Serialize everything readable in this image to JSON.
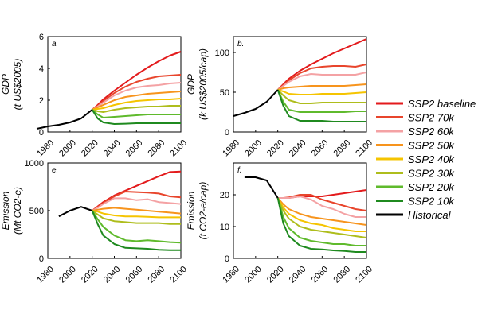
{
  "chart_data": [
    {
      "panel": "a.",
      "type": "line",
      "ylabel": [
        "GDP",
        "(t US$2005)"
      ],
      "xlim": [
        1980,
        2100
      ],
      "ylim": [
        0,
        6
      ],
      "xticks": [
        "1980",
        "2000",
        "2020",
        "2040",
        "2060",
        "2080",
        "2100"
      ],
      "yticks": [
        "0",
        "2",
        "4",
        "6"
      ],
      "historical": {
        "x": [
          1970,
          1980,
          1990,
          2000,
          2010,
          2020
        ],
        "y": [
          0.2,
          0.35,
          0.45,
          0.6,
          0.85,
          1.4
        ]
      },
      "x": [
        2020,
        2025,
        2030,
        2040,
        2050,
        2060,
        2070,
        2080,
        2090,
        2100
      ],
      "series": [
        {
          "name": "SSP2 baseline",
          "values": [
            1.4,
            1.7,
            2.05,
            2.6,
            3.1,
            3.6,
            4.05,
            4.45,
            4.8,
            5.05
          ]
        },
        {
          "name": "SSP2 70k",
          "values": [
            1.4,
            1.65,
            1.95,
            2.45,
            2.85,
            3.15,
            3.35,
            3.5,
            3.55,
            3.6
          ]
        },
        {
          "name": "SSP2 60k",
          "values": [
            1.4,
            1.6,
            1.85,
            2.3,
            2.6,
            2.8,
            2.9,
            2.95,
            3.05,
            3.1
          ]
        },
        {
          "name": "SSP2 50k",
          "values": [
            1.4,
            1.55,
            1.7,
            2.0,
            2.2,
            2.3,
            2.4,
            2.45,
            2.5,
            2.55
          ]
        },
        {
          "name": "SSP2 40k",
          "values": [
            1.4,
            1.45,
            1.5,
            1.7,
            1.85,
            1.95,
            2.0,
            2.05,
            2.05,
            2.1
          ]
        },
        {
          "name": "SSP2 30k",
          "values": [
            1.4,
            1.3,
            1.25,
            1.4,
            1.5,
            1.55,
            1.6,
            1.6,
            1.65,
            1.65
          ]
        },
        {
          "name": "SSP2 20k",
          "values": [
            1.4,
            1.1,
            0.9,
            0.95,
            1.0,
            1.05,
            1.1,
            1.1,
            1.1,
            1.1
          ]
        },
        {
          "name": "SSP2 10k",
          "values": [
            1.4,
            0.85,
            0.6,
            0.5,
            0.52,
            0.55,
            0.55,
            0.55,
            0.55,
            0.55
          ]
        }
      ]
    },
    {
      "panel": "b.",
      "type": "line",
      "ylabel": [
        "GDP",
        "(k US$2005/cap)"
      ],
      "xlim": [
        1980,
        2100
      ],
      "ylim": [
        0,
        120
      ],
      "xticks": [
        "1980",
        "2000",
        "2020",
        "2040",
        "2060",
        "2080",
        "2100"
      ],
      "yticks": [
        "0",
        "50",
        "100"
      ],
      "historical": {
        "x": [
          1980,
          1990,
          2000,
          2010,
          2020
        ],
        "y": [
          20,
          24,
          29,
          38,
          53
        ]
      },
      "x": [
        2020,
        2025,
        2030,
        2040,
        2050,
        2060,
        2070,
        2080,
        2090,
        2100
      ],
      "series": [
        {
          "name": "SSP2 baseline",
          "values": [
            53,
            60,
            67,
            77,
            85,
            92,
            99,
            105,
            111,
            117
          ]
        },
        {
          "name": "SSP2 70k",
          "values": [
            53,
            59,
            65,
            74,
            80,
            82,
            83,
            83,
            82,
            85
          ]
        },
        {
          "name": "SSP2 60k",
          "values": [
            53,
            58,
            63,
            70,
            73,
            72,
            72,
            72,
            72,
            75
          ]
        },
        {
          "name": "SSP2 50k",
          "values": [
            53,
            55,
            56,
            57,
            58,
            58,
            58,
            58,
            59,
            60
          ]
        },
        {
          "name": "SSP2 40k",
          "values": [
            53,
            51,
            48,
            47,
            47,
            48,
            48,
            48,
            49,
            50
          ]
        },
        {
          "name": "SSP2 30k",
          "values": [
            53,
            46,
            40,
            36,
            36,
            37,
            37,
            37,
            37,
            37
          ]
        },
        {
          "name": "SSP2 20k",
          "values": [
            53,
            38,
            28,
            25,
            25,
            25,
            25,
            25,
            26,
            26
          ]
        },
        {
          "name": "SSP2 10k",
          "values": [
            53,
            33,
            20,
            14,
            14,
            14,
            13,
            13,
            13,
            13
          ]
        }
      ]
    },
    {
      "panel": "e.",
      "type": "line",
      "ylabel": [
        "Emission",
        "(Mt CO2-e)"
      ],
      "xlim": [
        1980,
        2100
      ],
      "ylim": [
        0,
        1000
      ],
      "xticks": [
        "1980",
        "2000",
        "2020",
        "2040",
        "2060",
        "2080",
        "2100"
      ],
      "yticks": [
        "0",
        "500",
        "1000"
      ],
      "historical": {
        "x": [
          1990,
          2000,
          2010,
          2020
        ],
        "y": [
          440,
          500,
          540,
          500
        ]
      },
      "x": [
        2020,
        2025,
        2030,
        2040,
        2050,
        2060,
        2070,
        2080,
        2090,
        2100
      ],
      "series": [
        {
          "name": "SSP2 baseline",
          "values": [
            500,
            545,
            590,
            660,
            710,
            760,
            810,
            860,
            905,
            910
          ]
        },
        {
          "name": "SSP2 70k",
          "values": [
            500,
            540,
            580,
            650,
            700,
            695,
            690,
            680,
            650,
            640
          ]
        },
        {
          "name": "SSP2 60k",
          "values": [
            500,
            530,
            570,
            630,
            630,
            610,
            620,
            590,
            580,
            570
          ]
        },
        {
          "name": "SSP2 50k",
          "values": [
            500,
            510,
            520,
            530,
            520,
            510,
            500,
            490,
            480,
            470
          ]
        },
        {
          "name": "SSP2 40k",
          "values": [
            500,
            490,
            470,
            450,
            440,
            440,
            435,
            430,
            430,
            430
          ]
        },
        {
          "name": "SSP2 30k",
          "values": [
            500,
            460,
            420,
            390,
            380,
            370,
            370,
            370,
            360,
            360
          ]
        },
        {
          "name": "SSP2 20k",
          "values": [
            500,
            410,
            330,
            240,
            190,
            180,
            190,
            180,
            170,
            165
          ]
        },
        {
          "name": "SSP2 10k",
          "values": [
            500,
            360,
            240,
            150,
            110,
            105,
            100,
            90,
            85,
            85
          ]
        }
      ]
    },
    {
      "panel": "f.",
      "type": "line",
      "ylabel": [
        "Emission",
        "(t CO2-e/cap)"
      ],
      "xlim": [
        1980,
        2100
      ],
      "ylim": [
        0,
        30
      ],
      "xticks": [
        "1980",
        "2000",
        "2020",
        "2040",
        "2060",
        "2080",
        "2100"
      ],
      "yticks": [
        "0",
        "10",
        "20"
      ],
      "historical": {
        "x": [
          1990,
          2000,
          2010,
          2020
        ],
        "y": [
          25.5,
          25.5,
          24.5,
          19
        ]
      },
      "x": [
        2020,
        2025,
        2030,
        2040,
        2050,
        2060,
        2070,
        2080,
        2090,
        2100
      ],
      "series": [
        {
          "name": "SSP2 baseline",
          "values": [
            19,
            19,
            19,
            19.5,
            19.5,
            19.5,
            20,
            20.5,
            21,
            21.5
          ]
        },
        {
          "name": "SSP2 70k",
          "values": [
            19,
            19,
            19.2,
            20,
            20,
            18.5,
            17.5,
            16.5,
            15.5,
            15
          ]
        },
        {
          "name": "SSP2 60k",
          "values": [
            19,
            19,
            19,
            19.5,
            18.5,
            16.5,
            15.5,
            14,
            13,
            13
          ]
        },
        {
          "name": "SSP2 50k",
          "values": [
            19,
            17,
            15.5,
            14,
            13,
            12.5,
            12,
            11.5,
            11,
            10.5
          ]
        },
        {
          "name": "SSP2 40k",
          "values": [
            19,
            16,
            14,
            12,
            11,
            10.5,
            9.5,
            9,
            8.5,
            8.5
          ]
        },
        {
          "name": "SSP2 30k",
          "values": [
            19,
            15,
            12.5,
            10,
            9,
            8.5,
            8,
            7.5,
            7,
            6.5
          ]
        },
        {
          "name": "SSP2 20k",
          "values": [
            19,
            13,
            9.5,
            6.5,
            5.5,
            5,
            4.5,
            4.5,
            4,
            4
          ]
        },
        {
          "name": "SSP2 10k",
          "values": [
            19,
            11,
            7,
            4,
            3,
            2.8,
            2.5,
            2.3,
            2,
            2
          ]
        }
      ]
    }
  ],
  "legend": [
    {
      "name": "SSP2 baseline",
      "color": "#e31a1c"
    },
    {
      "name": "SSP2 70k",
      "color": "#e8452c"
    },
    {
      "name": "SSP2 60k",
      "color": "#f4a2a4"
    },
    {
      "name": "SSP2 50k",
      "color": "#f7941d"
    },
    {
      "name": "SSP2 40k",
      "color": "#f5c400"
    },
    {
      "name": "SSP2 30k",
      "color": "#aebd1c"
    },
    {
      "name": "SSP2 20k",
      "color": "#5fba2c"
    },
    {
      "name": "SSP2 10k",
      "color": "#1f8a1f"
    },
    {
      "name": "Historical",
      "color": "#000000"
    }
  ]
}
